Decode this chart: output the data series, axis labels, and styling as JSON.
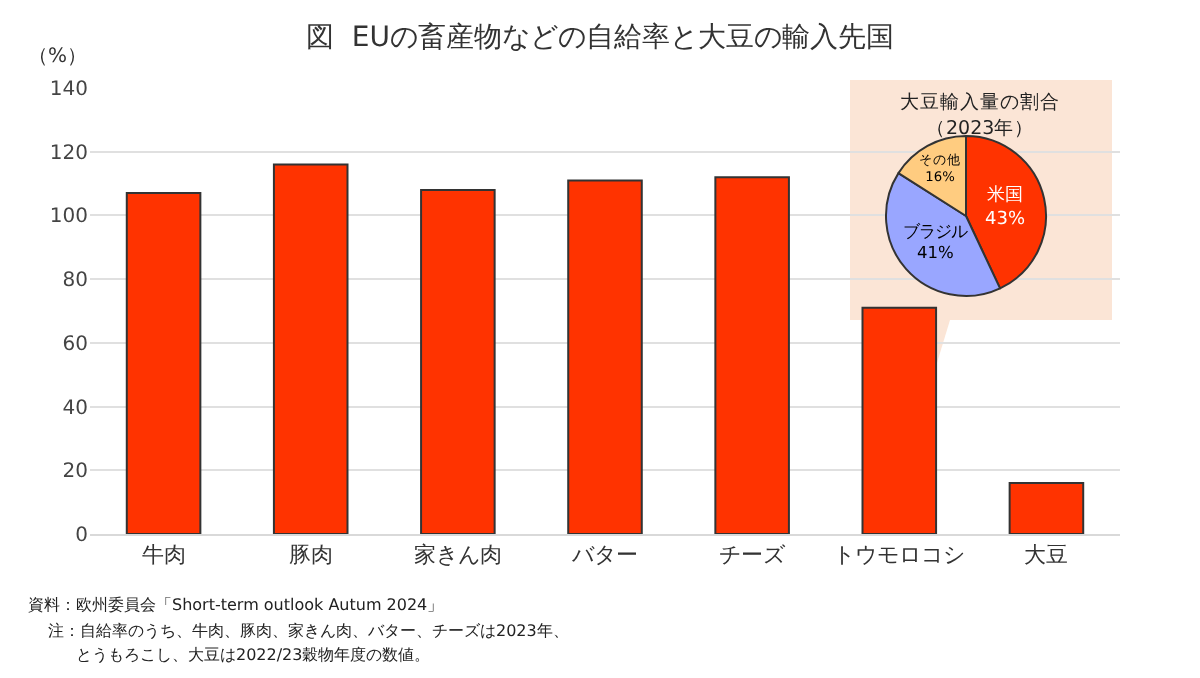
{
  "chart_data": [
    {
      "type": "bar",
      "title": "図  EUの畜産物などの自給率と大豆の輸入先国",
      "ylabel": "（%）",
      "categories": [
        "牛肉",
        "豚肉",
        "家きん肉",
        "バター",
        "チーズ",
        "トウモロコシ",
        "大豆"
      ],
      "values": [
        107,
        116,
        108,
        111,
        112,
        71,
        16
      ],
      "color": "#ff3300",
      "ylim": [
        0,
        140
      ],
      "yticks": [
        0,
        20,
        40,
        60,
        80,
        100,
        120,
        140
      ],
      "grid": "y",
      "annotations": [
        "資料：欧州委員会「Short-term outlook Autum 2024」",
        "注：自給率のうち、牛肉、豚肉、家きん肉、バター、チーズは2023年、",
        "とうもろこし、大豆は2022/23穀物年度の数値。"
      ]
    },
    {
      "type": "pie",
      "title": "大豆輸入量の割合",
      "subtitle": "（2023年）",
      "categories": [
        "米国",
        "ブラジル",
        "その他"
      ],
      "values": [
        43,
        41,
        16
      ],
      "colors": [
        "#ff3300",
        "#99a6ff",
        "#ffcc80"
      ],
      "value_labels": [
        "43%",
        "41%",
        "16%"
      ]
    }
  ]
}
